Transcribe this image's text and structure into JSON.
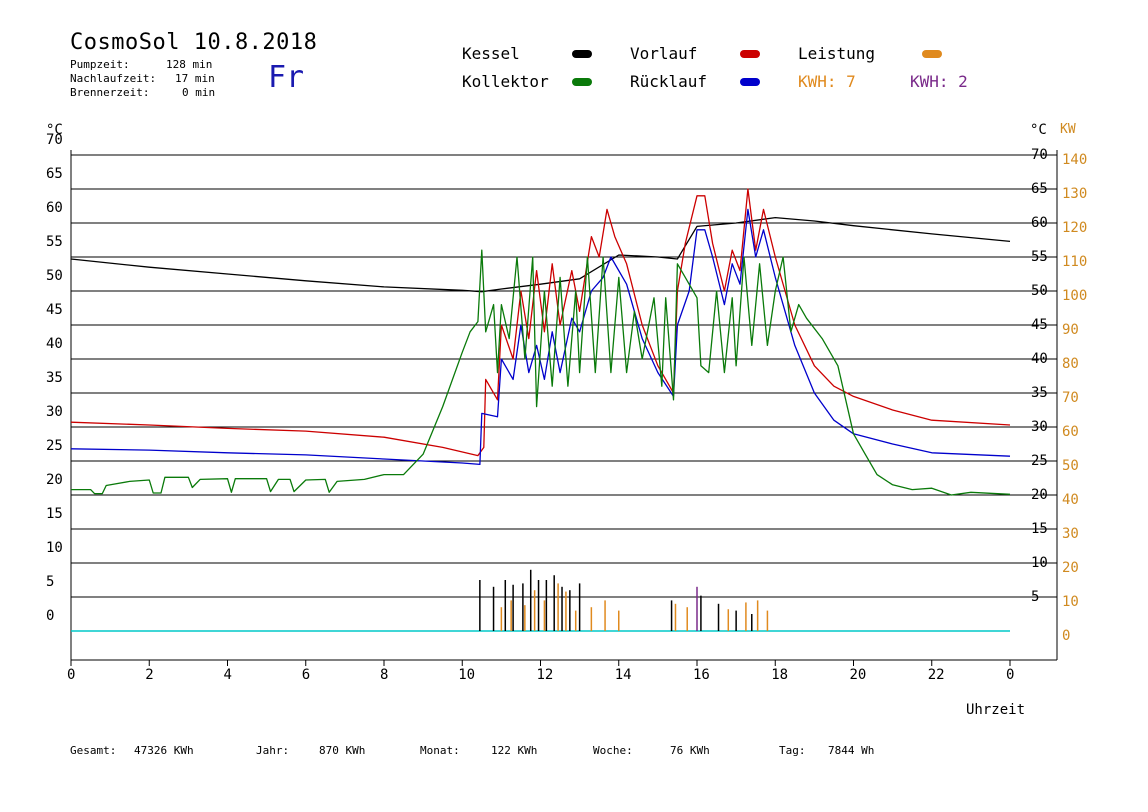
{
  "header": {
    "title": "CosmoSol 10.8.2018",
    "day": "Fr",
    "stats": [
      {
        "label": "Pumpzeit:",
        "value": "128 min"
      },
      {
        "label": "Nachlaufzeit:",
        "value": "17 min"
      },
      {
        "label": "Brennerzeit:",
        "value": "0 min"
      }
    ]
  },
  "legend": {
    "kessel": "Kessel",
    "kollektor": "Kollektor",
    "vorlauf": "Vorlauf",
    "ruecklauf": "Rücklauf",
    "leistung": "Leistung",
    "kwh1": "KWH: 7",
    "kwh2": "KWH: 2"
  },
  "colors": {
    "kessel": "#000000",
    "kollektor": "#0a7a0a",
    "vorlauf": "#cc0000",
    "ruecklauf": "#0000cc",
    "leistung": "#e08a1e",
    "kwh2": "#7a2a8a",
    "baseline": "#00c8c8"
  },
  "axes": {
    "left_unit": "°C",
    "right_unit_temp": "°C",
    "right_unit_power": "KW",
    "xlabel": "Uhrzeit"
  },
  "footer": [
    {
      "label": "Gesamt:",
      "value": "47326 KWh"
    },
    {
      "label": "Jahr:",
      "value": "870 KWh"
    },
    {
      "label": "Monat:",
      "value": "122 KWh"
    },
    {
      "label": "Woche:",
      "value": "76 KWh"
    },
    {
      "label": "Tag:",
      "value": "7844 Wh"
    }
  ],
  "chart_data": {
    "type": "line",
    "x_ticks": [
      "0",
      "2",
      "4",
      "6",
      "8",
      "10",
      "12",
      "14",
      "16",
      "18",
      "20",
      "22",
      "0"
    ],
    "y_left_ticks": [
      "0",
      "5",
      "10",
      "15",
      "20",
      "25",
      "30",
      "35",
      "40",
      "45",
      "50",
      "55",
      "60",
      "65",
      "70"
    ],
    "y_right_temp_ticks": [
      "5",
      "10",
      "15",
      "20",
      "25",
      "30",
      "35",
      "40",
      "45",
      "50",
      "55",
      "60",
      "65",
      "70"
    ],
    "y_right_power_ticks": [
      "0",
      "10",
      "20",
      "30",
      "40",
      "50",
      "60",
      "70",
      "80",
      "90",
      "100",
      "110",
      "120",
      "130",
      "140"
    ],
    "xlim": [
      0,
      24
    ],
    "ylim": [
      0,
      70
    ],
    "grid": true,
    "series": [
      {
        "name": "Kessel",
        "color": "#000000",
        "points": [
          [
            0,
            54.7
          ],
          [
            2,
            53.5
          ],
          [
            4,
            52.5
          ],
          [
            6,
            51.5
          ],
          [
            8,
            50.6
          ],
          [
            10,
            50.1
          ],
          [
            10.5,
            49.9
          ],
          [
            11,
            50.3
          ],
          [
            12,
            51.0
          ],
          [
            13,
            51.8
          ],
          [
            14,
            55.3
          ],
          [
            15,
            55.0
          ],
          [
            15.5,
            54.7
          ],
          [
            16,
            59.5
          ],
          [
            17,
            60.0
          ],
          [
            18,
            60.8
          ],
          [
            19,
            60.3
          ],
          [
            20,
            59.6
          ],
          [
            22,
            58.4
          ],
          [
            24,
            57.3
          ]
        ]
      },
      {
        "name": "Vorlauf",
        "color": "#cc0000",
        "points": [
          [
            0,
            30.7
          ],
          [
            2,
            30.3
          ],
          [
            4,
            29.8
          ],
          [
            6,
            29.4
          ],
          [
            8,
            28.5
          ],
          [
            9.5,
            27
          ],
          [
            10.4,
            25.8
          ],
          [
            10.55,
            27
          ],
          [
            10.6,
            37
          ],
          [
            10.9,
            34
          ],
          [
            11.0,
            45
          ],
          [
            11.3,
            40
          ],
          [
            11.5,
            50
          ],
          [
            11.7,
            43
          ],
          [
            11.9,
            53
          ],
          [
            12.1,
            44
          ],
          [
            12.3,
            54
          ],
          [
            12.5,
            45
          ],
          [
            12.8,
            53
          ],
          [
            13.0,
            47
          ],
          [
            13.3,
            58
          ],
          [
            13.5,
            55
          ],
          [
            13.7,
            62
          ],
          [
            13.9,
            58
          ],
          [
            14.2,
            54
          ],
          [
            14.6,
            45
          ],
          [
            15.0,
            39
          ],
          [
            15.4,
            35
          ],
          [
            15.5,
            50
          ],
          [
            15.7,
            57
          ],
          [
            16.0,
            64
          ],
          [
            16.2,
            64
          ],
          [
            16.4,
            57
          ],
          [
            16.7,
            50
          ],
          [
            16.9,
            56
          ],
          [
            17.1,
            53
          ],
          [
            17.3,
            65
          ],
          [
            17.5,
            56
          ],
          [
            17.7,
            62
          ],
          [
            18.0,
            55
          ],
          [
            18.5,
            45
          ],
          [
            19.0,
            39
          ],
          [
            19.5,
            36
          ],
          [
            20,
            34.5
          ],
          [
            21,
            32.5
          ],
          [
            22,
            31.0
          ],
          [
            24,
            30.3
          ]
        ]
      },
      {
        "name": "Rücklauf",
        "color": "#0000cc",
        "points": [
          [
            0,
            26.8
          ],
          [
            2,
            26.6
          ],
          [
            4,
            26.2
          ],
          [
            6,
            25.9
          ],
          [
            8,
            25.3
          ],
          [
            10,
            24.7
          ],
          [
            10.45,
            24.5
          ],
          [
            10.5,
            32
          ],
          [
            10.9,
            31.5
          ],
          [
            11.0,
            40
          ],
          [
            11.3,
            37
          ],
          [
            11.5,
            45
          ],
          [
            11.7,
            38
          ],
          [
            11.9,
            42
          ],
          [
            12.1,
            37
          ],
          [
            12.3,
            44
          ],
          [
            12.5,
            38
          ],
          [
            12.8,
            46
          ],
          [
            13.0,
            44
          ],
          [
            13.3,
            50
          ],
          [
            13.6,
            52
          ],
          [
            13.8,
            55
          ],
          [
            14.2,
            51
          ],
          [
            14.6,
            43
          ],
          [
            15.0,
            38
          ],
          [
            15.4,
            34.5
          ],
          [
            15.5,
            45
          ],
          [
            15.8,
            50
          ],
          [
            16.0,
            59
          ],
          [
            16.2,
            59
          ],
          [
            16.4,
            55
          ],
          [
            16.7,
            48
          ],
          [
            16.9,
            54
          ],
          [
            17.1,
            51
          ],
          [
            17.3,
            62
          ],
          [
            17.5,
            55
          ],
          [
            17.7,
            59
          ],
          [
            18.0,
            52
          ],
          [
            18.5,
            42
          ],
          [
            19,
            35
          ],
          [
            19.5,
            31
          ],
          [
            20,
            29
          ],
          [
            21,
            27.5
          ],
          [
            22,
            26.2
          ],
          [
            24,
            25.7
          ]
        ]
      },
      {
        "name": "Kollektor",
        "color": "#0a7a0a",
        "points": [
          [
            0,
            20.8
          ],
          [
            0.5,
            20.8
          ],
          [
            0.6,
            20.2
          ],
          [
            0.8,
            20.2
          ],
          [
            0.9,
            21.4
          ],
          [
            1.5,
            22.0
          ],
          [
            2.0,
            22.2
          ],
          [
            2.1,
            20.3
          ],
          [
            2.3,
            20.3
          ],
          [
            2.4,
            22.6
          ],
          [
            3.0,
            22.6
          ],
          [
            3.1,
            21.1
          ],
          [
            3.3,
            22.3
          ],
          [
            4.0,
            22.4
          ],
          [
            4.1,
            20.4
          ],
          [
            4.2,
            22.4
          ],
          [
            5.0,
            22.4
          ],
          [
            5.1,
            20.5
          ],
          [
            5.3,
            22.3
          ],
          [
            5.6,
            22.3
          ],
          [
            5.7,
            20.5
          ],
          [
            6.0,
            22.2
          ],
          [
            6.5,
            22.3
          ],
          [
            6.6,
            20.4
          ],
          [
            6.8,
            22.0
          ],
          [
            7.5,
            22.3
          ],
          [
            8.0,
            23.0
          ],
          [
            8.5,
            23.0
          ],
          [
            9.0,
            26.0
          ],
          [
            9.5,
            33.0
          ],
          [
            10.0,
            41.0
          ],
          [
            10.2,
            44.0
          ],
          [
            10.4,
            45.5
          ],
          [
            10.5,
            56
          ],
          [
            10.6,
            44
          ],
          [
            10.8,
            48
          ],
          [
            10.9,
            38
          ],
          [
            11.0,
            48
          ],
          [
            11.2,
            43
          ],
          [
            11.4,
            55
          ],
          [
            11.6,
            40
          ],
          [
            11.8,
            55
          ],
          [
            11.9,
            33
          ],
          [
            12.1,
            50
          ],
          [
            12.3,
            36
          ],
          [
            12.5,
            52
          ],
          [
            12.7,
            36
          ],
          [
            12.9,
            50
          ],
          [
            13.0,
            38
          ],
          [
            13.2,
            55
          ],
          [
            13.4,
            38
          ],
          [
            13.6,
            55
          ],
          [
            13.8,
            38
          ],
          [
            14.0,
            52
          ],
          [
            14.2,
            38
          ],
          [
            14.4,
            47
          ],
          [
            14.6,
            40
          ],
          [
            14.9,
            49
          ],
          [
            15.1,
            36
          ],
          [
            15.2,
            49
          ],
          [
            15.4,
            34
          ],
          [
            15.5,
            54
          ],
          [
            15.7,
            52
          ],
          [
            16.0,
            49
          ],
          [
            16.1,
            39
          ],
          [
            16.3,
            38
          ],
          [
            16.5,
            50
          ],
          [
            16.7,
            38
          ],
          [
            16.9,
            49
          ],
          [
            17.0,
            39
          ],
          [
            17.2,
            55
          ],
          [
            17.4,
            42
          ],
          [
            17.6,
            54
          ],
          [
            17.8,
            42
          ],
          [
            18.0,
            50
          ],
          [
            18.2,
            55
          ],
          [
            18.4,
            44
          ],
          [
            18.6,
            48
          ],
          [
            18.8,
            46
          ],
          [
            19.2,
            43
          ],
          [
            19.6,
            39
          ],
          [
            20.0,
            29
          ],
          [
            20.3,
            26
          ],
          [
            20.6,
            23
          ],
          [
            21,
            21.5
          ],
          [
            21.5,
            20.8
          ],
          [
            22,
            21.0
          ],
          [
            22.5,
            20.0
          ],
          [
            23,
            20.4
          ],
          [
            24,
            20.1
          ]
        ]
      }
    ],
    "power_bars": {
      "black": [
        10.45,
        10.8,
        11.1,
        11.3,
        11.55,
        11.75,
        11.95,
        12.15,
        12.35,
        12.55,
        12.75,
        13.0,
        15.35,
        16.1,
        16.55,
        17.0,
        17.4
      ],
      "black_heights": [
        7.5,
        6.5,
        7.5,
        6.8,
        7.0,
        9.0,
        7.5,
        7.5,
        8.2,
        6.5,
        6.0,
        7.0,
        4.5,
        5.2,
        4.0,
        3.0,
        2.5
      ],
      "orange": [
        11.0,
        11.25,
        11.6,
        11.85,
        12.1,
        12.45,
        12.65,
        12.9,
        13.3,
        13.65,
        14.0,
        15.45,
        15.75,
        16.8,
        17.25,
        17.55,
        17.8
      ],
      "orange_heights": [
        3.5,
        4.5,
        3.8,
        6.0,
        4.5,
        7.0,
        5.8,
        3.0,
        3.5,
        4.5,
        3.0,
        4.0,
        3.5,
        3.2,
        4.2,
        4.5,
        3.0
      ],
      "purple_peak": [
        16.0,
        6.5
      ]
    }
  }
}
